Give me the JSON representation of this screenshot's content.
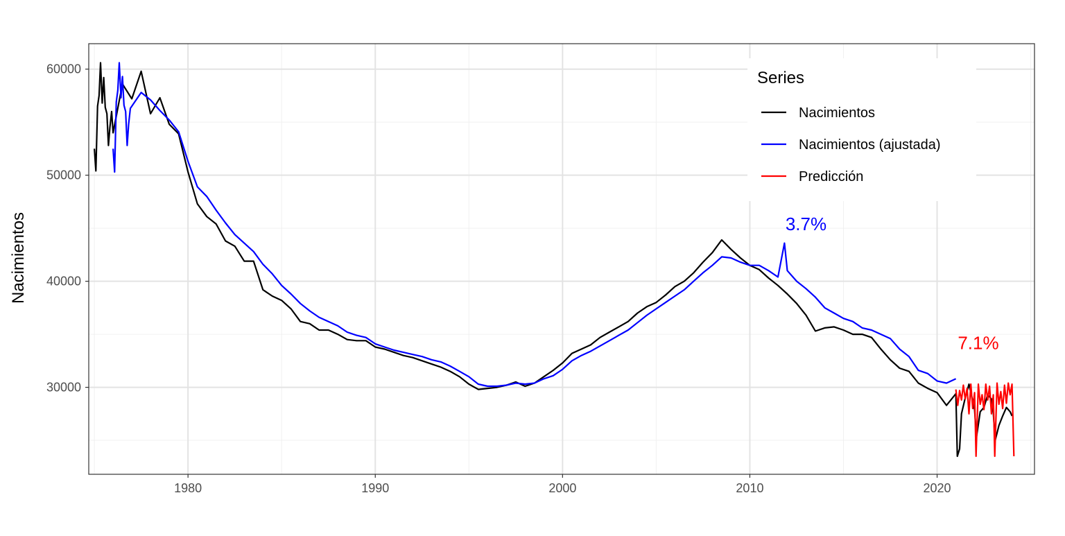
{
  "chart_data": {
    "type": "line",
    "title": "",
    "xlabel": "",
    "ylabel": "Nacimientos",
    "xlim": [
      1974.7,
      2025.2
    ],
    "ylim": [
      21800,
      62400
    ],
    "x_ticks": [
      1980,
      1990,
      2000,
      2010,
      2020
    ],
    "x_tick_labels": [
      "1980",
      "1990",
      "2000",
      "2010",
      "2020"
    ],
    "y_ticks": [
      30000,
      40000,
      50000,
      60000
    ],
    "y_tick_labels": [
      "30000",
      "40000",
      "50000",
      "60000"
    ],
    "grid": true,
    "legend": {
      "title": "Series",
      "placement": "top-right inside"
    },
    "series": [
      {
        "name": "Nacimientos",
        "color": "#000000",
        "points": [
          [
            1975.0,
            52500
          ],
          [
            1975.08,
            50400
          ],
          [
            1975.17,
            56500
          ],
          [
            1975.25,
            57500
          ],
          [
            1975.33,
            60600
          ],
          [
            1975.42,
            56800
          ],
          [
            1975.5,
            59200
          ],
          [
            1975.58,
            56400
          ],
          [
            1975.67,
            55800
          ],
          [
            1975.75,
            52800
          ],
          [
            1975.83,
            54500
          ],
          [
            1975.92,
            56000
          ],
          [
            1976.0,
            54000
          ],
          [
            1976.5,
            58600
          ],
          [
            1977.0,
            57200
          ],
          [
            1977.5,
            59800
          ],
          [
            1978.0,
            55800
          ],
          [
            1978.5,
            57300
          ],
          [
            1979.0,
            54800
          ],
          [
            1979.5,
            53900
          ],
          [
            1980.0,
            50300
          ],
          [
            1980.5,
            47300
          ],
          [
            1981.0,
            46100
          ],
          [
            1981.5,
            45400
          ],
          [
            1982.0,
            43800
          ],
          [
            1982.5,
            43300
          ],
          [
            1983.0,
            41900
          ],
          [
            1983.5,
            41900
          ],
          [
            1984.0,
            39200
          ],
          [
            1984.5,
            38600
          ],
          [
            1985.0,
            38200
          ],
          [
            1985.5,
            37400
          ],
          [
            1986.0,
            36200
          ],
          [
            1986.5,
            36000
          ],
          [
            1987.0,
            35400
          ],
          [
            1987.5,
            35400
          ],
          [
            1988.0,
            35000
          ],
          [
            1988.5,
            34500
          ],
          [
            1989.0,
            34400
          ],
          [
            1989.5,
            34400
          ],
          [
            1990.0,
            33800
          ],
          [
            1990.5,
            33600
          ],
          [
            1991.0,
            33300
          ],
          [
            1991.5,
            33000
          ],
          [
            1992.0,
            32800
          ],
          [
            1992.5,
            32500
          ],
          [
            1993.0,
            32200
          ],
          [
            1993.5,
            31900
          ],
          [
            1994.0,
            31500
          ],
          [
            1994.5,
            31000
          ],
          [
            1995.0,
            30300
          ],
          [
            1995.5,
            29800
          ],
          [
            1996.0,
            29900
          ],
          [
            1996.5,
            30000
          ],
          [
            1997.0,
            30200
          ],
          [
            1997.5,
            30500
          ],
          [
            1998.0,
            30100
          ],
          [
            1998.5,
            30400
          ],
          [
            1999.0,
            31000
          ],
          [
            1999.5,
            31600
          ],
          [
            2000.0,
            32300
          ],
          [
            2000.5,
            33200
          ],
          [
            2001.0,
            33600
          ],
          [
            2001.5,
            34000
          ],
          [
            2002.0,
            34700
          ],
          [
            2002.5,
            35200
          ],
          [
            2003.0,
            35700
          ],
          [
            2003.5,
            36200
          ],
          [
            2004.0,
            37000
          ],
          [
            2004.5,
            37600
          ],
          [
            2005.0,
            38000
          ],
          [
            2005.5,
            38700
          ],
          [
            2006.0,
            39500
          ],
          [
            2006.5,
            40000
          ],
          [
            2007.0,
            40800
          ],
          [
            2007.5,
            41800
          ],
          [
            2008.0,
            42700
          ],
          [
            2008.5,
            43900
          ],
          [
            2009.0,
            43000
          ],
          [
            2009.5,
            42200
          ],
          [
            2010.0,
            41500
          ],
          [
            2010.5,
            41100
          ],
          [
            2011.0,
            40300
          ],
          [
            2011.5,
            39600
          ],
          [
            2012.0,
            38800
          ],
          [
            2012.5,
            37900
          ],
          [
            2013.0,
            36800
          ],
          [
            2013.5,
            35300
          ],
          [
            2014.0,
            35600
          ],
          [
            2014.5,
            35700
          ],
          [
            2015.0,
            35400
          ],
          [
            2015.5,
            35000
          ],
          [
            2016.0,
            35000
          ],
          [
            2016.5,
            34700
          ],
          [
            2017.0,
            33600
          ],
          [
            2017.5,
            32600
          ],
          [
            2018.0,
            31800
          ],
          [
            2018.5,
            31500
          ],
          [
            2019.0,
            30400
          ],
          [
            2019.5,
            29900
          ],
          [
            2020.0,
            29500
          ],
          [
            2020.5,
            28300
          ],
          [
            2021.0,
            29400
          ],
          [
            2021.08,
            23500
          ],
          [
            2021.2,
            24200
          ],
          [
            2021.3,
            27500
          ],
          [
            2021.5,
            29000
          ],
          [
            2021.7,
            30300
          ],
          [
            2021.9,
            28700
          ],
          [
            2022.0,
            27900
          ],
          [
            2022.1,
            25300
          ],
          [
            2022.3,
            27700
          ],
          [
            2022.5,
            28100
          ],
          [
            2022.7,
            29300
          ],
          [
            2022.9,
            28900
          ],
          [
            2023.0,
            27600
          ],
          [
            2023.1,
            25000
          ],
          [
            2023.3,
            26400
          ],
          [
            2023.5,
            27300
          ],
          [
            2023.7,
            28100
          ],
          [
            2023.9,
            27700
          ],
          [
            2024.0,
            27300
          ]
        ]
      },
      {
        "name": "Nacimientos (ajustada)",
        "color": "#0000ff",
        "points": [
          [
            1976.0,
            52500
          ],
          [
            1976.08,
            50300
          ],
          [
            1976.17,
            56900
          ],
          [
            1976.25,
            58000
          ],
          [
            1976.33,
            60600
          ],
          [
            1976.42,
            57300
          ],
          [
            1976.5,
            59300
          ],
          [
            1976.58,
            56600
          ],
          [
            1976.67,
            56000
          ],
          [
            1976.75,
            52800
          ],
          [
            1976.83,
            54800
          ],
          [
            1976.92,
            56300
          ],
          [
            1977.5,
            57800
          ],
          [
            1978.0,
            57100
          ],
          [
            1978.5,
            56100
          ],
          [
            1979.0,
            55200
          ],
          [
            1979.5,
            54100
          ],
          [
            1980.0,
            51300
          ],
          [
            1980.5,
            48900
          ],
          [
            1981.0,
            48000
          ],
          [
            1981.5,
            46700
          ],
          [
            1982.0,
            45500
          ],
          [
            1982.5,
            44400
          ],
          [
            1983.0,
            43600
          ],
          [
            1983.5,
            42800
          ],
          [
            1984.0,
            41600
          ],
          [
            1984.5,
            40700
          ],
          [
            1985.0,
            39600
          ],
          [
            1985.5,
            38800
          ],
          [
            1986.0,
            37900
          ],
          [
            1986.5,
            37200
          ],
          [
            1987.0,
            36600
          ],
          [
            1987.5,
            36200
          ],
          [
            1988.0,
            35800
          ],
          [
            1988.5,
            35200
          ],
          [
            1989.0,
            34900
          ],
          [
            1989.5,
            34700
          ],
          [
            1990.0,
            34100
          ],
          [
            1990.5,
            33800
          ],
          [
            1991.0,
            33500
          ],
          [
            1991.5,
            33300
          ],
          [
            1992.0,
            33100
          ],
          [
            1992.5,
            32900
          ],
          [
            1993.0,
            32600
          ],
          [
            1993.5,
            32400
          ],
          [
            1994.0,
            32000
          ],
          [
            1994.5,
            31500
          ],
          [
            1995.0,
            31000
          ],
          [
            1995.5,
            30300
          ],
          [
            1996.0,
            30100
          ],
          [
            1996.5,
            30100
          ],
          [
            1997.0,
            30200
          ],
          [
            1997.5,
            30400
          ],
          [
            1998.0,
            30300
          ],
          [
            1998.5,
            30400
          ],
          [
            1999.0,
            30800
          ],
          [
            1999.5,
            31100
          ],
          [
            2000.0,
            31700
          ],
          [
            2000.5,
            32500
          ],
          [
            2001.0,
            33000
          ],
          [
            2001.5,
            33400
          ],
          [
            2002.0,
            33900
          ],
          [
            2002.5,
            34400
          ],
          [
            2003.0,
            34900
          ],
          [
            2003.5,
            35400
          ],
          [
            2004.0,
            36100
          ],
          [
            2004.5,
            36800
          ],
          [
            2005.0,
            37400
          ],
          [
            2005.5,
            38000
          ],
          [
            2006.0,
            38600
          ],
          [
            2006.5,
            39200
          ],
          [
            2007.0,
            40000
          ],
          [
            2007.5,
            40800
          ],
          [
            2008.0,
            41500
          ],
          [
            2008.5,
            42300
          ],
          [
            2009.0,
            42200
          ],
          [
            2009.5,
            41800
          ],
          [
            2010.0,
            41500
          ],
          [
            2010.5,
            41500
          ],
          [
            2011.0,
            41000
          ],
          [
            2011.5,
            40400
          ],
          [
            2011.85,
            43600
          ],
          [
            2012.0,
            41000
          ],
          [
            2012.5,
            40000
          ],
          [
            2013.0,
            39300
          ],
          [
            2013.5,
            38500
          ],
          [
            2014.0,
            37500
          ],
          [
            2014.5,
            37000
          ],
          [
            2015.0,
            36500
          ],
          [
            2015.5,
            36200
          ],
          [
            2016.0,
            35600
          ],
          [
            2016.5,
            35400
          ],
          [
            2017.0,
            35000
          ],
          [
            2017.5,
            34600
          ],
          [
            2018.0,
            33600
          ],
          [
            2018.5,
            32900
          ],
          [
            2019.0,
            31600
          ],
          [
            2019.5,
            31300
          ],
          [
            2020.0,
            30600
          ],
          [
            2020.5,
            30400
          ],
          [
            2021.0,
            30800
          ]
        ]
      },
      {
        "name": "Predicción",
        "color": "#ff0000",
        "points": [
          [
            2021.0,
            29800
          ],
          [
            2021.1,
            28300
          ],
          [
            2021.2,
            29700
          ],
          [
            2021.3,
            28800
          ],
          [
            2021.4,
            30200
          ],
          [
            2021.5,
            28900
          ],
          [
            2021.6,
            29900
          ],
          [
            2021.7,
            27500
          ],
          [
            2021.8,
            30300
          ],
          [
            2021.9,
            28000
          ],
          [
            2022.0,
            29500
          ],
          [
            2022.08,
            23500
          ],
          [
            2022.2,
            30300
          ],
          [
            2022.3,
            28400
          ],
          [
            2022.4,
            29300
          ],
          [
            2022.5,
            27900
          ],
          [
            2022.6,
            30300
          ],
          [
            2022.7,
            28800
          ],
          [
            2022.8,
            30100
          ],
          [
            2022.9,
            27500
          ],
          [
            2023.0,
            29300
          ],
          [
            2023.08,
            23500
          ],
          [
            2023.2,
            30400
          ],
          [
            2023.3,
            28400
          ],
          [
            2023.4,
            29600
          ],
          [
            2023.5,
            28000
          ],
          [
            2023.6,
            30200
          ],
          [
            2023.7,
            28500
          ],
          [
            2023.8,
            30400
          ],
          [
            2023.9,
            29300
          ],
          [
            2024.0,
            30300
          ],
          [
            2024.1,
            23500
          ]
        ]
      }
    ],
    "annotations": [
      {
        "text": "3.7%",
        "x": 2013.0,
        "y": 44800,
        "color": "#0000ff"
      },
      {
        "text": "7.1%",
        "x": 2022.2,
        "y": 33600,
        "color": "#ff0000"
      }
    ]
  }
}
